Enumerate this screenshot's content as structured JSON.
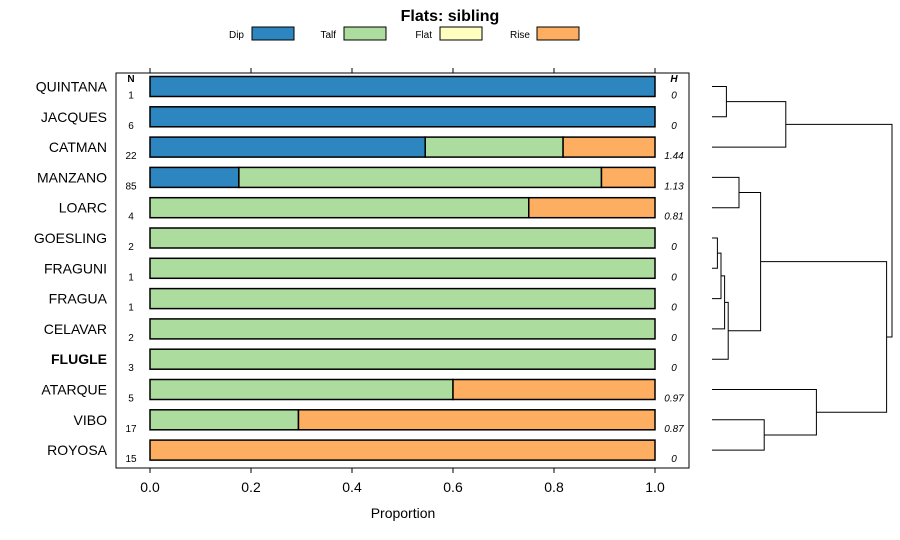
{
  "chart_data": {
    "type": "bar",
    "stacked": true,
    "orientation": "horizontal",
    "title": "Flats: sibling",
    "xlabel": "Proportion",
    "xlim": [
      0,
      1
    ],
    "xticks": [
      "0.0",
      "0.2",
      "0.4",
      "0.6",
      "0.8",
      "1.0"
    ],
    "n_header": "N",
    "h_header": "H",
    "legend": [
      {
        "name": "Dip",
        "color": "#2e86c1"
      },
      {
        "name": "Talf",
        "color": "#addd9e"
      },
      {
        "name": "Flat",
        "color": "#ffffbf"
      },
      {
        "name": "Rise",
        "color": "#fdae61"
      }
    ],
    "rows": [
      {
        "label": "QUINTANA",
        "bold": false,
        "n": "1",
        "h": "0",
        "values": [
          1.0,
          0,
          0,
          0
        ]
      },
      {
        "label": "JACQUES",
        "bold": false,
        "n": "6",
        "h": "0",
        "values": [
          1.0,
          0,
          0,
          0
        ]
      },
      {
        "label": "CATMAN",
        "bold": false,
        "n": "22",
        "h": "1.44",
        "values": [
          0.545,
          0.273,
          0,
          0.182
        ]
      },
      {
        "label": "MANZANO",
        "bold": false,
        "n": "85",
        "h": "1.13",
        "values": [
          0.176,
          0.718,
          0,
          0.106
        ]
      },
      {
        "label": "LOARC",
        "bold": false,
        "n": "4",
        "h": "0.81",
        "values": [
          0,
          0.75,
          0,
          0.25
        ]
      },
      {
        "label": "GOESLING",
        "bold": false,
        "n": "2",
        "h": "0",
        "values": [
          0,
          1.0,
          0,
          0
        ]
      },
      {
        "label": "FRAGUNI",
        "bold": false,
        "n": "1",
        "h": "0",
        "values": [
          0,
          1.0,
          0,
          0
        ]
      },
      {
        "label": "FRAGUA",
        "bold": false,
        "n": "1",
        "h": "0",
        "values": [
          0,
          1.0,
          0,
          0
        ]
      },
      {
        "label": "CELAVAR",
        "bold": false,
        "n": "2",
        "h": "0",
        "values": [
          0,
          1.0,
          0,
          0
        ]
      },
      {
        "label": "FLUGLE",
        "bold": true,
        "n": "3",
        "h": "0",
        "values": [
          0,
          1.0,
          0,
          0
        ]
      },
      {
        "label": "ATARQUE",
        "bold": false,
        "n": "5",
        "h": "0.97",
        "values": [
          0,
          0.6,
          0,
          0.4
        ]
      },
      {
        "label": "VIBO",
        "bold": false,
        "n": "17",
        "h": "0.87",
        "values": [
          0,
          0.294,
          0,
          0.706
        ]
      },
      {
        "label": "ROYOSA",
        "bold": false,
        "n": "15",
        "h": "0",
        "values": [
          0,
          0,
          0,
          1.0
        ]
      }
    ],
    "dendrogram": {
      "description": "hierarchical clustering of rows (merge heights as fraction of max)",
      "merges": [
        {
          "id": "m1",
          "a": 0,
          "b": 1,
          "height": 0.08
        },
        {
          "id": "m2",
          "a": 2,
          "b": "m1",
          "height": 0.41
        },
        {
          "id": "m3",
          "a": 3,
          "b": 4,
          "height": 0.15
        },
        {
          "id": "m4",
          "a": 5,
          "b": 6,
          "height": 0.03
        },
        {
          "id": "m5",
          "a": "m4",
          "b": 7,
          "height": 0.05
        },
        {
          "id": "m6",
          "a": "m5",
          "b": 8,
          "height": 0.07
        },
        {
          "id": "m7",
          "a": "m6",
          "b": 9,
          "height": 0.09
        },
        {
          "id": "m8",
          "a": "m3",
          "b": "m7",
          "height": 0.27
        },
        {
          "id": "m9",
          "a": 11,
          "b": 12,
          "height": 0.29
        },
        {
          "id": "m10",
          "a": 10,
          "b": "m9",
          "height": 0.58
        },
        {
          "id": "m11",
          "a": "m10",
          "b": "m8",
          "height": 0.97
        },
        {
          "id": "m12",
          "a": "m2",
          "b": "m11",
          "height": 1.0
        }
      ]
    }
  }
}
